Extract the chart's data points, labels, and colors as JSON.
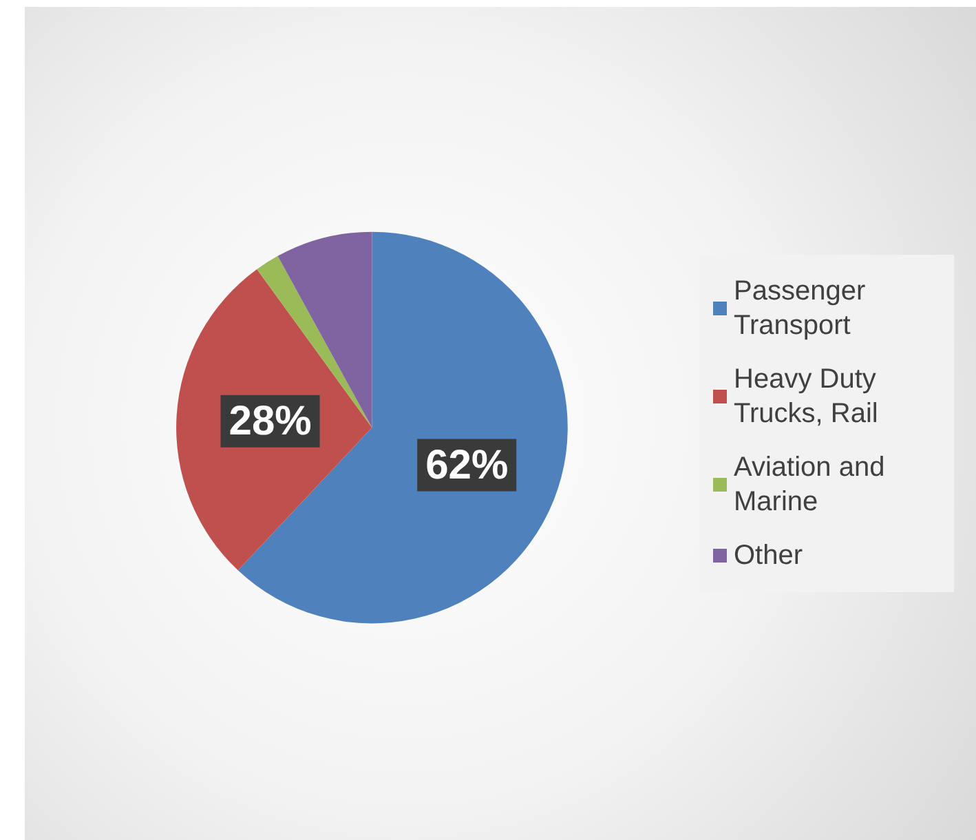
{
  "chart_data": {
    "type": "pie",
    "categories": [
      "Passenger Transport",
      "Heavy Duty Trucks, Rail",
      "Aviation and Marine",
      "Other"
    ],
    "values": [
      62,
      28,
      2,
      8
    ],
    "colors": [
      "#4f81bd",
      "#c0504d",
      "#9bbb59",
      "#8064a2"
    ],
    "value_labels": [
      "62%",
      "28%",
      null,
      null
    ],
    "legend": "right"
  }
}
